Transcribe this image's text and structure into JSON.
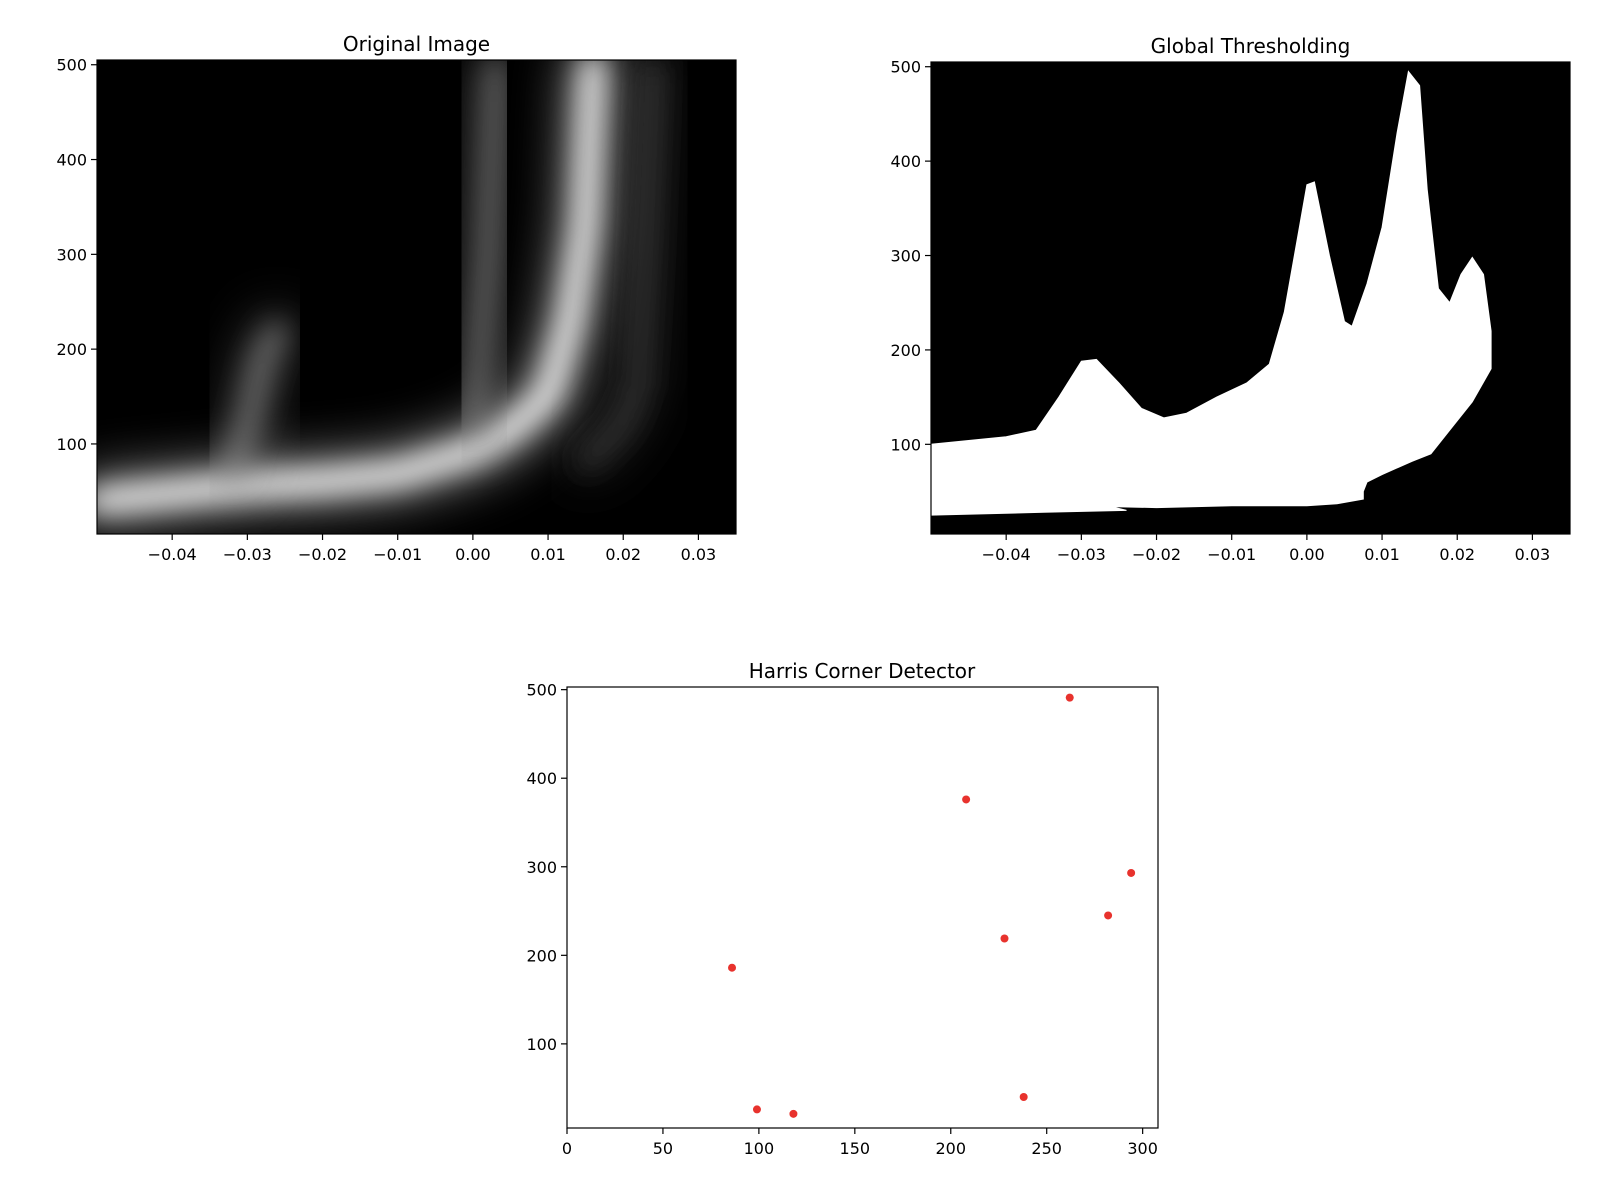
{
  "chart_data": [
    {
      "type": "heatmap",
      "title": "Original Image",
      "xlabel": "",
      "ylabel": "",
      "xlim": [
        -0.05,
        0.035
      ],
      "ylim": [
        5,
        505
      ],
      "xticks": [
        -0.04,
        -0.03,
        -0.02,
        -0.01,
        0.0,
        0.01,
        0.02,
        0.03
      ],
      "xtick_labels": [
        "−0.04",
        "−0.03",
        "−0.02",
        "−0.01",
        "0.00",
        "0.01",
        "0.02",
        "0.03"
      ],
      "yticks": [
        100,
        200,
        300,
        400,
        500
      ],
      "ytick_labels": [
        "100",
        "200",
        "300",
        "400",
        "500"
      ],
      "colormap": "gray",
      "background": "#000000",
      "bright_ridges": [
        {
          "points": [
            [
              -0.05,
              40
            ],
            [
              -0.04,
              48
            ],
            [
              -0.03,
              56
            ],
            [
              -0.02,
              60
            ],
            [
              -0.01,
              68
            ],
            [
              0.0,
              92
            ],
            [
              0.005,
              115
            ],
            [
              0.01,
              150
            ],
            [
              0.013,
              230
            ],
            [
              0.015,
              330
            ],
            [
              0.016,
              500
            ]
          ],
          "peak": 1.0
        },
        {
          "points": [
            [
              -0.032,
              70
            ],
            [
              -0.03,
              120
            ],
            [
              -0.028,
              190
            ],
            [
              -0.026,
              220
            ]
          ],
          "peak": 0.55
        },
        {
          "points": [
            [
              0.0,
              120
            ],
            [
              0.001,
              200
            ],
            [
              0.002,
              300
            ],
            [
              0.003,
              500
            ]
          ],
          "peak": 0.5
        },
        {
          "points": [
            [
              0.015,
              80
            ],
            [
              0.02,
              120
            ],
            [
              0.022,
              160
            ],
            [
              0.023,
              300
            ],
            [
              0.024,
              500
            ]
          ],
          "peak": 0.25
        }
      ]
    },
    {
      "type": "heatmap",
      "title": "Global Thresholding",
      "xlabel": "",
      "ylabel": "",
      "xlim": [
        -0.05,
        0.035
      ],
      "ylim": [
        5,
        505
      ],
      "xticks": [
        -0.04,
        -0.03,
        -0.02,
        -0.01,
        0.0,
        0.01,
        0.02,
        0.03
      ],
      "xtick_labels": [
        "−0.04",
        "−0.03",
        "−0.02",
        "−0.01",
        "0.00",
        "0.01",
        "0.02",
        "0.03"
      ],
      "yticks": [
        100,
        200,
        300,
        400,
        500
      ],
      "ytick_labels": [
        "100",
        "200",
        "300",
        "400",
        "500"
      ],
      "colormap": "binary",
      "background": "#000000",
      "foreground": "#ffffff",
      "region_outline": [
        [
          -0.05,
          100
        ],
        [
          -0.04,
          108
        ],
        [
          -0.036,
          115
        ],
        [
          -0.033,
          150
        ],
        [
          -0.03,
          188
        ],
        [
          -0.028,
          190
        ],
        [
          -0.025,
          165
        ],
        [
          -0.022,
          138
        ],
        [
          -0.019,
          128
        ],
        [
          -0.016,
          133
        ],
        [
          -0.012,
          150
        ],
        [
          -0.008,
          165
        ],
        [
          -0.005,
          185
        ],
        [
          -0.003,
          240
        ],
        [
          -0.001,
          330
        ],
        [
          0.0,
          375
        ],
        [
          0.001,
          378
        ],
        [
          0.003,
          300
        ],
        [
          0.005,
          230
        ],
        [
          0.006,
          225
        ],
        [
          0.008,
          270
        ],
        [
          0.01,
          330
        ],
        [
          0.012,
          430
        ],
        [
          0.0135,
          495
        ],
        [
          0.015,
          480
        ],
        [
          0.016,
          370
        ],
        [
          0.0175,
          265
        ],
        [
          0.019,
          250
        ],
        [
          0.0205,
          280
        ],
        [
          0.022,
          298
        ],
        [
          0.0235,
          280
        ],
        [
          0.0245,
          220
        ],
        [
          0.0245,
          180
        ],
        [
          0.022,
          145
        ],
        [
          0.019,
          115
        ],
        [
          0.0165,
          90
        ],
        [
          0.014,
          82
        ],
        [
          0.01,
          68
        ],
        [
          0.008,
          60
        ],
        [
          0.0075,
          50
        ],
        [
          0.0075,
          42
        ],
        [
          0.004,
          37
        ],
        [
          0.0,
          35
        ],
        [
          -0.01,
          35
        ],
        [
          -0.02,
          33
        ],
        [
          -0.026,
          34
        ],
        [
          -0.024,
          30
        ],
        [
          -0.035,
          28
        ],
        [
          -0.05,
          25
        ]
      ]
    },
    {
      "type": "scatter",
      "title": "Harris Corner Detector",
      "xlabel": "",
      "ylabel": "",
      "xlim": [
        0,
        308
      ],
      "ylim": [
        5,
        503
      ],
      "xticks": [
        0,
        50,
        100,
        150,
        200,
        250,
        300
      ],
      "xtick_labels": [
        "0",
        "50",
        "100",
        "150",
        "200",
        "250",
        "300"
      ],
      "yticks": [
        100,
        200,
        300,
        400,
        500
      ],
      "ytick_labels": [
        "100",
        "200",
        "300",
        "400",
        "500"
      ],
      "marker_color": "#e8322d",
      "points": [
        {
          "x": 262,
          "y": 491
        },
        {
          "x": 208,
          "y": 376
        },
        {
          "x": 294,
          "y": 293
        },
        {
          "x": 282,
          "y": 245
        },
        {
          "x": 228,
          "y": 219
        },
        {
          "x": 86,
          "y": 186
        },
        {
          "x": 238,
          "y": 40
        },
        {
          "x": 99,
          "y": 26
        },
        {
          "x": 118,
          "y": 21
        }
      ]
    }
  ]
}
